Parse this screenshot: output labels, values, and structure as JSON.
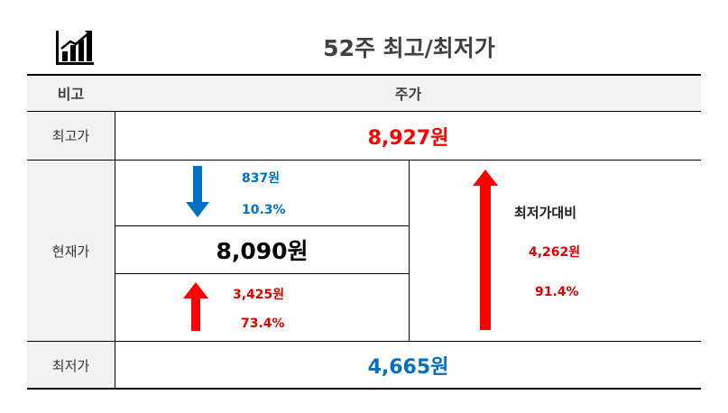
{
  "title": "52주 최고/최저가",
  "header": {
    "col1": "비고",
    "col2": "주가"
  },
  "rows": {
    "high": {
      "label": "최고가",
      "value": "8,927원"
    },
    "current": {
      "label": "현재가",
      "value": "8,090원"
    },
    "low": {
      "label": "최저가",
      "value": "4,665원"
    }
  },
  "from_high": {
    "diff": "837원",
    "percent": "10.3%",
    "direction": "down"
  },
  "from_low": {
    "diff": "3,425원",
    "percent": "73.4%",
    "direction": "up"
  },
  "range": {
    "label": "최저가대비",
    "diff": "4,262원",
    "percent": "91.4%",
    "direction": "up"
  },
  "colors": {
    "up": "#ff0000",
    "down": "#0070c0",
    "header_bg": "#f2f2f2"
  },
  "icons": {
    "title_icon": "bar-chart-trend-icon"
  }
}
